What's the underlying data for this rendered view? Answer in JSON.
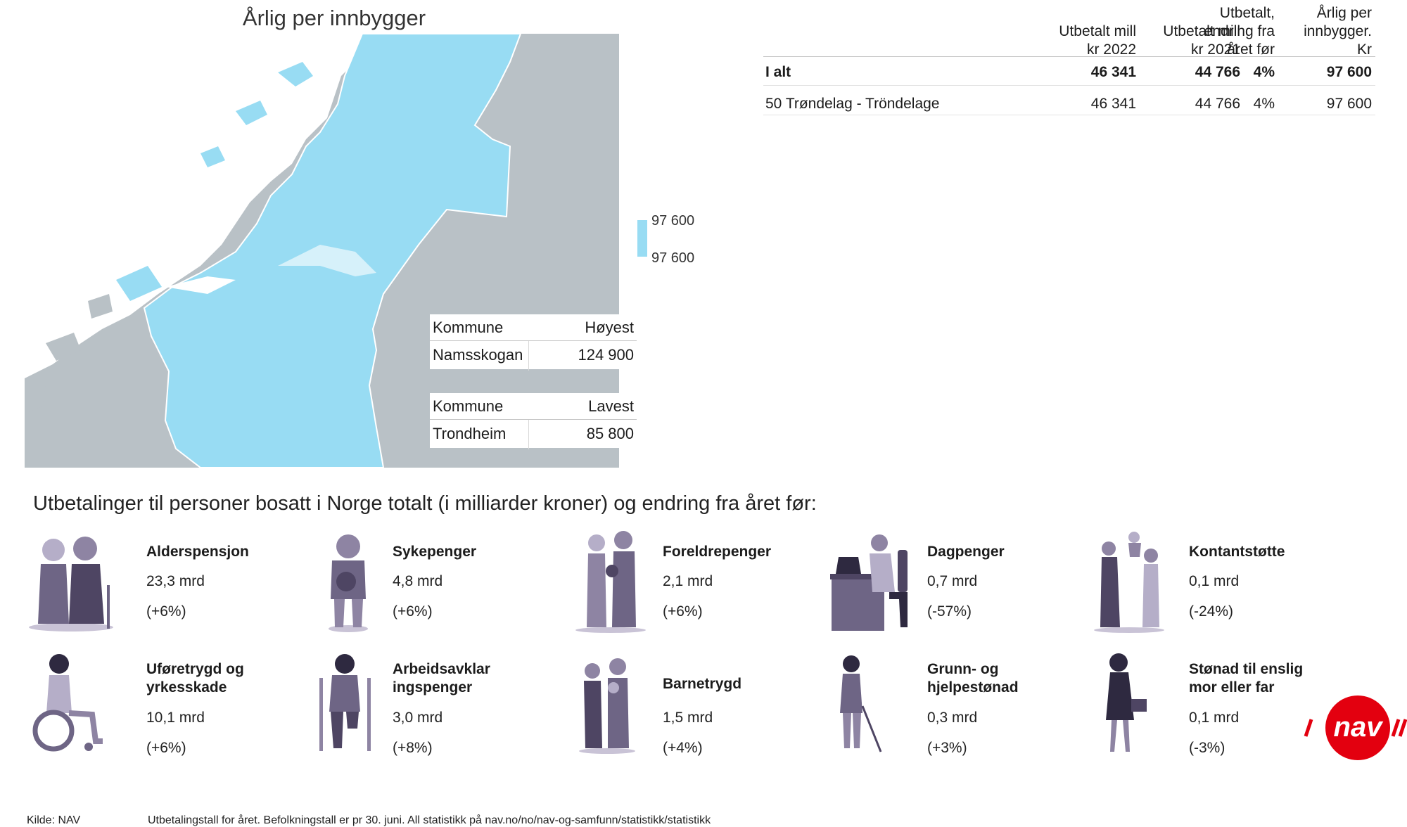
{
  "map": {
    "title": "Årlig per innbygger",
    "highest": {
      "col1": "Kommune",
      "col2": "Høyest",
      "name": "Namsskogan",
      "value": "124 900"
    },
    "lowest": {
      "col1": "Kommune",
      "col2": "Lavest",
      "name": "Trondheim",
      "value": "85 800"
    }
  },
  "legend": {
    "top": "97 600",
    "bottom": "97 600",
    "color": "#98dcf3"
  },
  "table": {
    "headers": {
      "h1a": "Utbetalt mill",
      "h1b": "kr  2022",
      "h2a": "Utbetalt mill",
      "h2b": "kr 2021",
      "h3a": "Utbetalt,",
      "h3b": "endring fra",
      "h3c": "året før",
      "h4a": "Årlig per",
      "h4b": "innbygger.",
      "h4c": "Kr"
    },
    "rows": [
      {
        "label": "I alt",
        "v2022": "46 341",
        "v2021": "44 766",
        "change": "4%",
        "per": "97 600"
      },
      {
        "label": "50 Trøndelag - Tröndelage",
        "v2022": "46 341",
        "v2021": "44 766",
        "change": "4%",
        "per": "97 600"
      }
    ]
  },
  "section": {
    "heading": "Utbetalinger til personer bosatt i Norge totalt (i milliarder kroner) og endring fra året før:"
  },
  "benefits": [
    {
      "name": "Alderspensjon",
      "name2": "",
      "amount": "23,3 mrd",
      "change": "(+6%)"
    },
    {
      "name": "Sykepenger",
      "name2": "",
      "amount": "4,8 mrd",
      "change": "(+6%)"
    },
    {
      "name": "Foreldrepenger",
      "name2": "",
      "amount": "2,1 mrd",
      "change": "(+6%)"
    },
    {
      "name": "Dagpenger",
      "name2": "",
      "amount": "0,7 mrd",
      "change": "(-57%)"
    },
    {
      "name": "Kontantstøtte",
      "name2": "",
      "amount": "0,1 mrd",
      "change": "(-24%)"
    },
    {
      "name": "Uføretrygd og",
      "name2": "yrkesskade",
      "amount": "10,1 mrd",
      "change": "(+6%)"
    },
    {
      "name": "Arbeidsavklar",
      "name2": "ingspenger",
      "amount": "3,0 mrd",
      "change": "(+8%)"
    },
    {
      "name": "Barnetrygd",
      "name2": "",
      "amount": "1,5 mrd",
      "change": "(+4%)"
    },
    {
      "name": "Grunn- og",
      "name2": "hjelpestønad",
      "amount": "0,3 mrd",
      "change": "(+3%)"
    },
    {
      "name": "Stønad til enslig",
      "name2": "mor eller far",
      "amount": "0,1 mrd",
      "change": "(-3%)"
    }
  ],
  "logo": {
    "text": "nav",
    "color": "#e3000f"
  },
  "footer": {
    "source": "Kilde: NAV",
    "note": "Utbetalingstall for året. Befolkningstall er pr 30. juni. All statistikk på nav.no/no/nav-og-samfunn/statistikk/statistikk"
  },
  "colors": {
    "region": "#98dcf3",
    "land": "#b9c1c6",
    "sea": "#ffffff",
    "figure": "#8e84a3"
  }
}
